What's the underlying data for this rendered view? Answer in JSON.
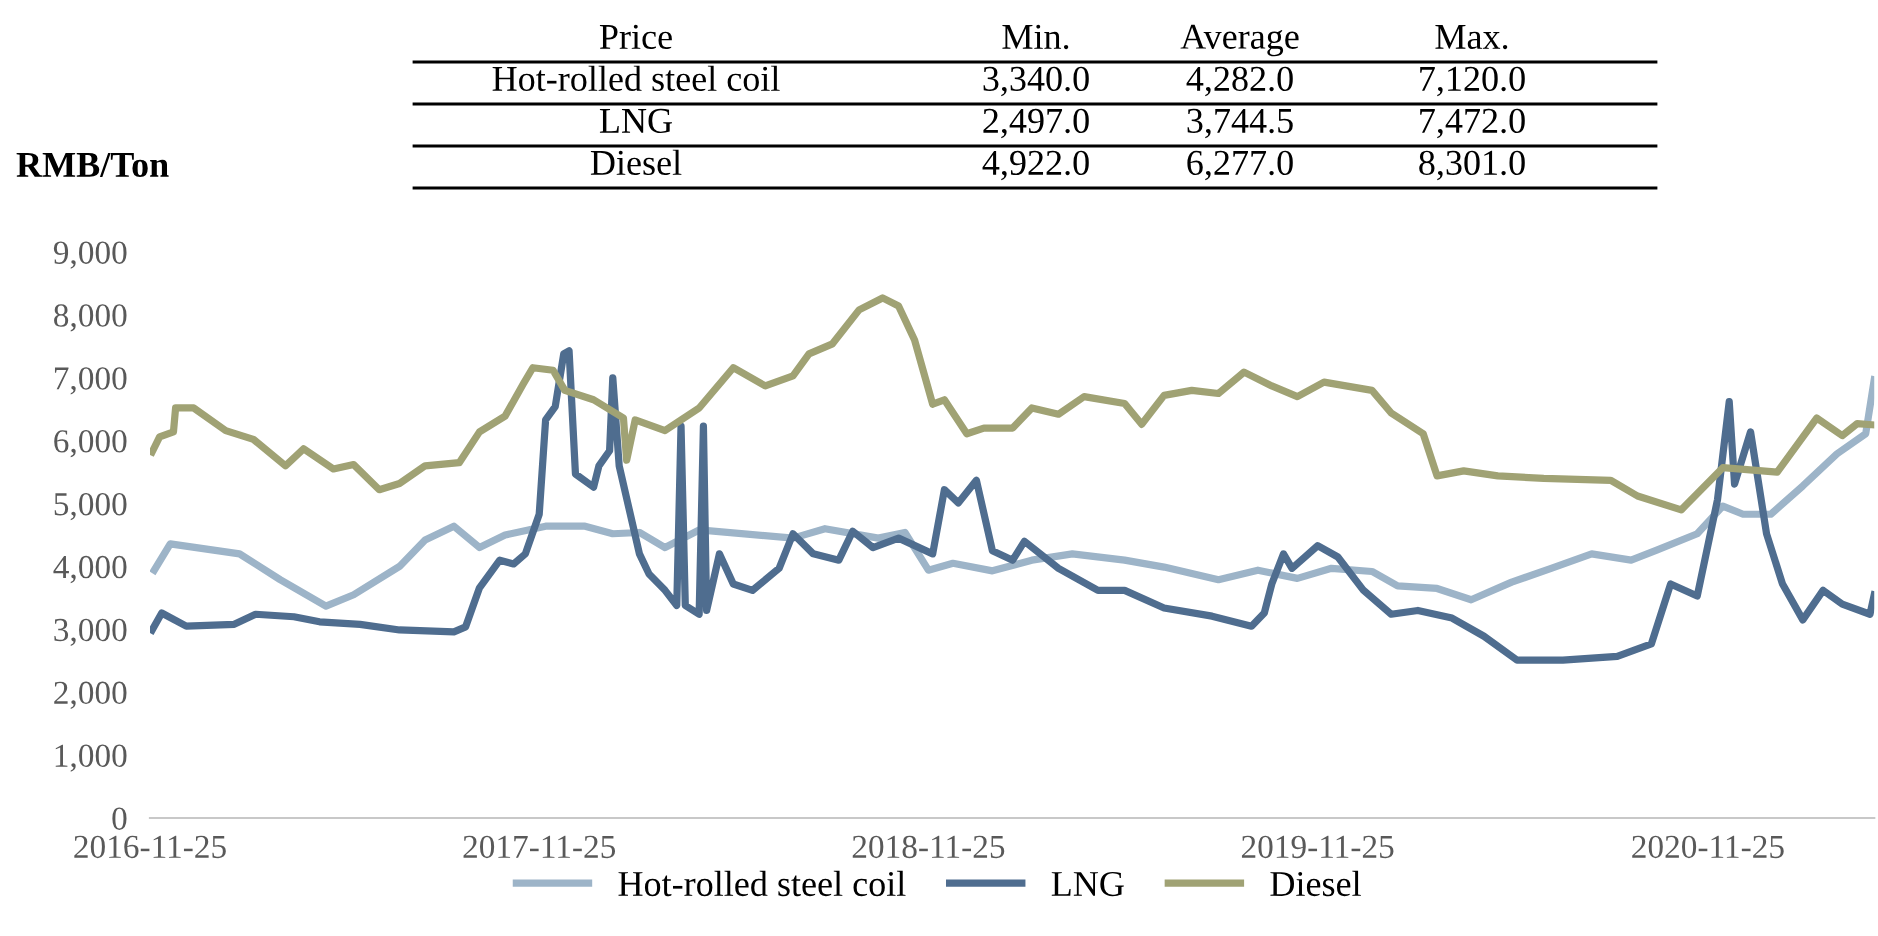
{
  "chart_data": {
    "type": "line",
    "ylabel": "RMB/Ton",
    "annotations": [
      "Price",
      "Min.",
      "Average",
      "Max.",
      "Hot-rolled steel coil",
      "3,340.0",
      "4,282.0",
      "7,120.0",
      "LNG",
      "2,497.0",
      "3,744.5",
      "7,472.0",
      "Diesel",
      "4,922.0",
      "6,277.0",
      "8,301.0"
    ],
    "xlim": [
      "2016-11-25",
      "2021-04-30"
    ],
    "xticks": [
      "2016-11-25",
      "2017-11-25",
      "2018-11-25",
      "2019-11-25",
      "2020-11-25"
    ],
    "ylim": [
      0,
      9000
    ],
    "yticks": [
      0,
      {
        "value": 1000,
        "label": "1,000"
      },
      {
        "value": 2000,
        "label": "2,000"
      },
      {
        "value": 3000,
        "label": "3,000"
      },
      {
        "value": 4000,
        "label": "4,000"
      },
      {
        "value": 5000,
        "label": "5,000"
      },
      {
        "value": 6000,
        "label": "6,000"
      },
      {
        "value": 7000,
        "label": "7,000"
      },
      {
        "value": 8000,
        "label": "8,000"
      },
      {
        "value": 9000,
        "label": "9,000"
      }
    ],
    "grid": false,
    "legend": "bottom",
    "marker": "none",
    "line_style": "solid",
    "series": [
      {
        "name": "Hot-rolled steel coil",
        "color": "#9db4c8",
        "x": [
          "2016-11-29",
          "2016-12-14",
          "2017-02-17",
          "2017-03-27",
          "2017-05-09",
          "2017-06-04",
          "2017-07-17",
          "2017-08-10",
          "2017-09-06",
          "2017-09-30",
          "2017-10-24",
          "2017-12-01",
          "2018-01-07",
          "2018-02-02",
          "2018-02-27",
          "2018-03-23",
          "2018-04-24",
          "2018-07-21",
          "2018-08-20",
          "2018-10-09",
          "2018-11-03",
          "2018-11-25",
          "2018-12-18",
          "2019-01-24",
          "2019-03-02",
          "2019-04-09",
          "2019-05-28",
          "2019-07-04",
          "2019-08-24",
          "2019-09-30",
          "2019-11-06",
          "2019-12-08",
          "2020-01-15",
          "2020-02-08",
          "2020-03-16",
          "2020-04-17",
          "2020-05-25",
          "2020-07-01",
          "2020-08-08",
          "2020-09-14",
          "2020-10-08",
          "2020-11-15",
          "2020-12-09",
          "2020-12-28",
          "2021-01-23",
          "2021-02-22",
          "2021-03-26",
          "2021-04-22",
          "2021-04-30"
        ],
        "values": [
          3940,
          4360,
          4200,
          3790,
          3370,
          3550,
          4000,
          4420,
          4640,
          4300,
          4500,
          4640,
          4640,
          4520,
          4540,
          4300,
          4580,
          4450,
          4600,
          4450,
          4540,
          3940,
          4050,
          3930,
          4100,
          4200,
          4100,
          3990,
          3790,
          3940,
          3810,
          3970,
          3920,
          3690,
          3650,
          3470,
          3750,
          3970,
          4200,
          4100,
          4260,
          4520,
          4960,
          4830,
          4830,
          5280,
          5790,
          6110,
          6970
        ]
      },
      {
        "name": "LNG",
        "color": "#4f6d8f",
        "x": [
          "2016-11-27",
          "2016-12-06",
          "2016-12-29",
          "2017-02-12",
          "2017-03-04",
          "2017-04-09",
          "2017-05-03",
          "2017-06-10",
          "2017-07-17",
          "2017-09-06",
          "2017-09-17",
          "2017-09-30",
          "2017-10-19",
          "2017-11-01",
          "2017-11-12",
          "2017-11-25",
          "2017-12-01",
          "2017-12-10",
          "2017-12-18",
          "2017-12-23",
          "2017-12-29",
          "2018-01-15",
          "2018-01-20",
          "2018-01-30",
          "2018-02-02",
          "2018-02-08",
          "2018-02-27",
          "2018-03-08",
          "2018-03-23",
          "2018-04-03",
          "2018-04-07",
          "2018-04-11",
          "2018-04-24",
          "2018-04-28",
          "2018-05-01",
          "2018-05-13",
          "2018-05-26",
          "2018-06-13",
          "2018-07-08",
          "2018-07-21",
          "2018-08-09",
          "2018-09-02",
          "2018-09-15",
          "2018-10-04",
          "2018-10-28",
          "2018-11-29",
          "2018-12-10",
          "2018-12-23",
          "2019-01-09",
          "2019-01-24",
          "2019-02-12",
          "2019-02-23",
          "2019-03-27",
          "2019-05-03",
          "2019-05-28",
          "2019-07-04",
          "2019-08-18",
          "2019-09-24",
          "2019-10-06",
          "2019-10-13",
          "2019-10-24",
          "2019-11-01",
          "2019-11-25",
          "2019-12-14",
          "2020-01-07",
          "2020-02-02",
          "2020-02-27",
          "2020-03-30",
          "2020-04-29",
          "2020-05-30",
          "2020-07-12",
          "2020-09-01",
          "2020-10-03",
          "2020-10-21",
          "2020-11-15",
          "2020-12-04",
          "2020-12-15",
          "2020-12-20",
          "2021-01-04",
          "2021-01-19",
          "2021-02-03",
          "2021-02-22",
          "2021-03-13",
          "2021-03-31",
          "2021-04-26",
          "2021-04-30"
        ],
        "values": [
          2990,
          3260,
          3050,
          3080,
          3240,
          3200,
          3120,
          3080,
          2990,
          2960,
          3040,
          3660,
          4100,
          4040,
          4200,
          4830,
          6330,
          6540,
          7380,
          7430,
          5470,
          5260,
          5600,
          5840,
          7000,
          5600,
          4200,
          3880,
          3620,
          3380,
          6230,
          3380,
          3240,
          6230,
          3300,
          4200,
          3720,
          3620,
          3970,
          4520,
          4200,
          4100,
          4560,
          4300,
          4450,
          4200,
          5220,
          5010,
          5370,
          4250,
          4100,
          4400,
          3970,
          3620,
          3620,
          3340,
          3210,
          3050,
          3260,
          3720,
          4200,
          3970,
          4330,
          4150,
          3620,
          3240,
          3300,
          3180,
          2890,
          2510,
          2510,
          2570,
          2770,
          3720,
          3530,
          5060,
          6620,
          5310,
          6140,
          4520,
          3720,
          3150,
          3620,
          3400,
          3240,
          3550
        ]
      },
      {
        "name": "Diesel",
        "color": "#a0a274",
        "x": [
          "2016-11-27",
          "2016-12-04",
          "2016-12-17",
          "2016-12-19",
          "2017-01-05",
          "2017-02-04",
          "2017-03-02",
          "2017-04-01",
          "2017-04-18",
          "2017-05-16",
          "2017-06-04",
          "2017-06-28",
          "2017-07-17",
          "2017-08-10",
          "2017-09-11",
          "2017-09-30",
          "2017-10-24",
          "2017-11-10",
          "2017-11-19",
          "2017-12-08",
          "2017-12-19",
          "2018-01-15",
          "2018-02-12",
          "2018-02-15",
          "2018-02-23",
          "2018-03-23",
          "2018-04-24",
          "2018-05-26",
          "2018-06-25",
          "2018-07-21",
          "2018-08-05",
          "2018-08-27",
          "2018-09-21",
          "2018-10-13",
          "2018-10-28",
          "2018-11-12",
          "2018-11-29",
          "2018-12-10",
          "2018-12-31",
          "2019-01-16",
          "2019-02-12",
          "2019-03-02",
          "2019-03-27",
          "2019-04-20",
          "2019-05-28",
          "2019-06-13",
          "2019-07-04",
          "2019-07-30",
          "2019-08-24",
          "2019-09-17",
          "2019-10-13",
          "2019-11-06",
          "2019-12-01",
          "2020-01-15",
          "2020-02-02",
          "2020-03-03",
          "2020-03-16",
          "2020-04-10",
          "2020-05-12",
          "2020-06-24",
          "2020-08-26",
          "2020-09-20",
          "2020-10-31",
          "2020-12-09",
          "2021-01-29",
          "2021-03-07",
          "2021-03-31",
          "2021-04-14",
          "2021-04-30"
        ],
        "values": [
          5820,
          6060,
          6140,
          6520,
          6520,
          6160,
          6020,
          5600,
          5870,
          5550,
          5620,
          5220,
          5320,
          5600,
          5650,
          6140,
          6390,
          6900,
          7160,
          7120,
          6800,
          6650,
          6360,
          5690,
          6330,
          6160,
          6520,
          7160,
          6870,
          7030,
          7380,
          7540,
          8080,
          8270,
          8140,
          7600,
          6580,
          6650,
          6110,
          6200,
          6200,
          6520,
          6420,
          6700,
          6590,
          6260,
          6720,
          6800,
          6750,
          7090,
          6870,
          6700,
          6930,
          6800,
          6440,
          6110,
          5440,
          5520,
          5440,
          5400,
          5370,
          5120,
          4900,
          5570,
          5500,
          6360,
          6080,
          6270,
          6250
        ]
      }
    ]
  }
}
